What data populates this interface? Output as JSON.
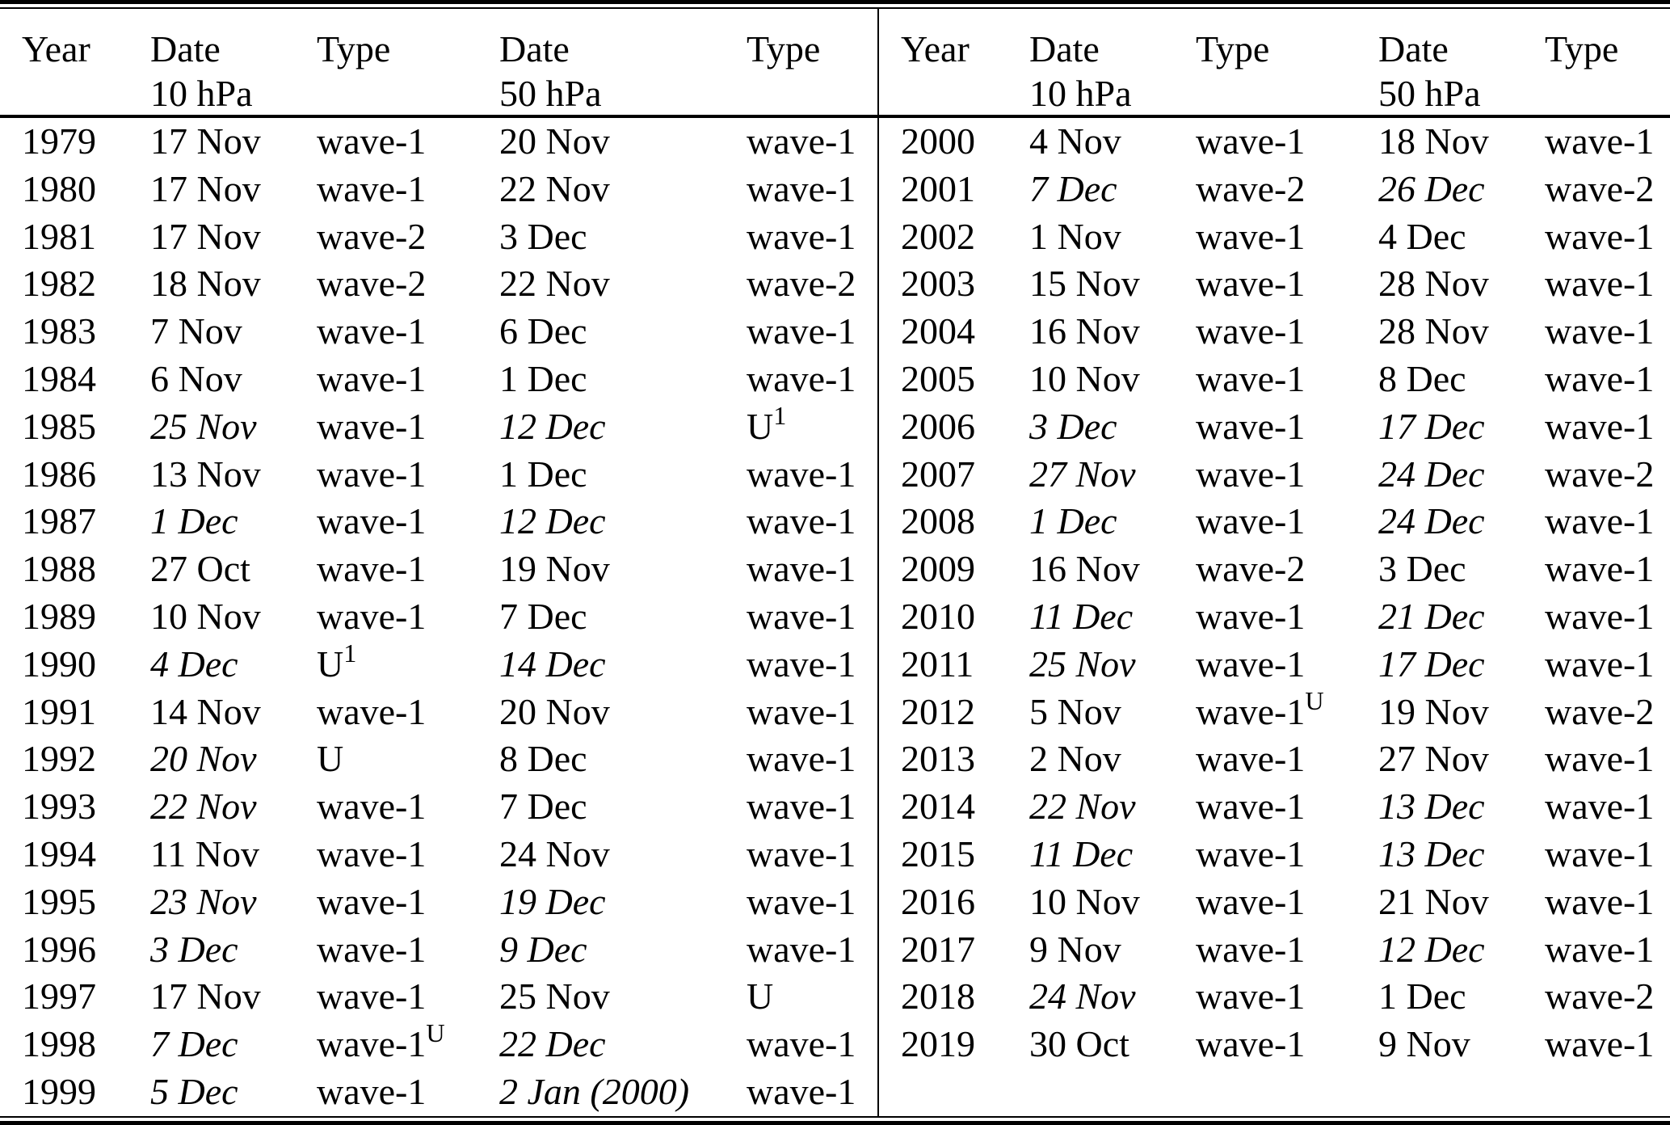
{
  "header": {
    "year": "Year",
    "date": "Date",
    "type": "Type",
    "p10": "10 hPa",
    "p50": "50 hPa"
  },
  "colors": {
    "text": "#000000",
    "background": "#ffffff",
    "rule": "#000000"
  },
  "style_legend": {
    "n": "regular",
    "b": "bold",
    "i": "italic"
  },
  "table": {
    "left_rows": [
      {
        "year": "1979",
        "date10": {
          "t": "17 Nov",
          "s": "n"
        },
        "type10": {
          "t": "wave-1",
          "s": "n"
        },
        "date50": {
          "t": "20 Nov",
          "s": "b"
        },
        "type50": {
          "t": "wave-1",
          "s": "n"
        }
      },
      {
        "year": "1980",
        "date10": {
          "t": "17 Nov",
          "s": "n"
        },
        "type10": {
          "t": "wave-1",
          "s": "n"
        },
        "date50": {
          "t": "22 Nov",
          "s": "b"
        },
        "type50": {
          "t": "wave-1",
          "s": "n"
        }
      },
      {
        "year": "1981",
        "date10": {
          "t": "17 Nov",
          "s": "n"
        },
        "type10": {
          "t": "wave-2",
          "s": "n"
        },
        "date50": {
          "t": "3 Dec",
          "s": "b"
        },
        "type50": {
          "t": "wave-1",
          "s": "n"
        }
      },
      {
        "year": "1982",
        "date10": {
          "t": "18 Nov",
          "s": "n"
        },
        "type10": {
          "t": "wave-2",
          "s": "n"
        },
        "date50": {
          "t": "22 Nov",
          "s": "b"
        },
        "type50": {
          "t": "wave-2",
          "s": "n"
        }
      },
      {
        "year": "1983",
        "date10": {
          "t": "7 Nov",
          "s": "b"
        },
        "type10": {
          "t": "wave-1",
          "s": "n"
        },
        "date50": {
          "t": "6 Dec",
          "s": "n"
        },
        "type50": {
          "t": "wave-1",
          "s": "n"
        }
      },
      {
        "year": "1984",
        "date10": {
          "t": "6 Nov",
          "s": "b"
        },
        "type10": {
          "t": "wave-1",
          "s": "n"
        },
        "date50": {
          "t": "1 Dec",
          "s": "b"
        },
        "type50": {
          "t": "wave-1",
          "s": "n"
        }
      },
      {
        "year": "1985",
        "date10": {
          "t": "25 Nov",
          "s": "i"
        },
        "type10": {
          "t": "wave-1",
          "s": "n"
        },
        "date50": {
          "t": "12 Dec",
          "s": "i"
        },
        "type50": {
          "t": "U",
          "s": "n",
          "sup": "1"
        }
      },
      {
        "year": "1986",
        "date10": {
          "t": "13 Nov",
          "s": "b"
        },
        "type10": {
          "t": "wave-1",
          "s": "n"
        },
        "date50": {
          "t": "1 Dec",
          "s": "b"
        },
        "type50": {
          "t": "wave-1",
          "s": "n"
        }
      },
      {
        "year": "1987",
        "date10": {
          "t": "1 Dec",
          "s": "i"
        },
        "type10": {
          "t": "wave-1",
          "s": "n"
        },
        "date50": {
          "t": "12 Dec",
          "s": "i"
        },
        "type50": {
          "t": "wave-1",
          "s": "n"
        }
      },
      {
        "year": "1988",
        "date10": {
          "t": "27 Oct",
          "s": "b"
        },
        "type10": {
          "t": "wave-1",
          "s": "n"
        },
        "date50": {
          "t": "19 Nov",
          "s": "b"
        },
        "type50": {
          "t": "wave-1",
          "s": "n"
        }
      },
      {
        "year": "1989",
        "date10": {
          "t": "10 Nov",
          "s": "b"
        },
        "type10": {
          "t": "wave-1",
          "s": "n"
        },
        "date50": {
          "t": "7 Dec",
          "s": "n"
        },
        "type50": {
          "t": "wave-1",
          "s": "n"
        }
      },
      {
        "year": "1990",
        "date10": {
          "t": "4 Dec",
          "s": "i"
        },
        "type10": {
          "t": "U",
          "s": "n",
          "sup": "1"
        },
        "date50": {
          "t": "14 Dec",
          "s": "i"
        },
        "type50": {
          "t": "wave-1",
          "s": "n"
        }
      },
      {
        "year": "1991",
        "date10": {
          "t": "14 Nov",
          "s": "b"
        },
        "type10": {
          "t": "wave-1",
          "s": "n"
        },
        "date50": {
          "t": "20 Nov",
          "s": "b"
        },
        "type50": {
          "t": "wave-1",
          "s": "n"
        }
      },
      {
        "year": "1992",
        "date10": {
          "t": "20 Nov",
          "s": "i"
        },
        "type10": {
          "t": "U",
          "s": "n"
        },
        "date50": {
          "t": "8 Dec",
          "s": "n"
        },
        "type50": {
          "t": "wave-1",
          "s": "n"
        }
      },
      {
        "year": "1993",
        "date10": {
          "t": "22 Nov",
          "s": "i"
        },
        "type10": {
          "t": "wave-1",
          "s": "n"
        },
        "date50": {
          "t": "7 Dec",
          "s": "n"
        },
        "type50": {
          "t": "wave-1",
          "s": "n"
        }
      },
      {
        "year": "1994",
        "date10": {
          "t": "11 Nov",
          "s": "b"
        },
        "type10": {
          "t": "wave-1",
          "s": "n"
        },
        "date50": {
          "t": "24 Nov",
          "s": "b"
        },
        "type50": {
          "t": "wave-1",
          "s": "n"
        }
      },
      {
        "year": "1995",
        "date10": {
          "t": "23 Nov",
          "s": "i"
        },
        "type10": {
          "t": "wave-1",
          "s": "n"
        },
        "date50": {
          "t": "19 Dec",
          "s": "i"
        },
        "type50": {
          "t": "wave-1",
          "s": "n"
        }
      },
      {
        "year": "1996",
        "date10": {
          "t": "3 Dec",
          "s": "i"
        },
        "type10": {
          "t": "wave-1",
          "s": "n"
        },
        "date50": {
          "t": "9 Dec",
          "s": "i"
        },
        "type50": {
          "t": "wave-1",
          "s": "n"
        }
      },
      {
        "year": "1997",
        "date10": {
          "t": "17 Nov",
          "s": "n"
        },
        "type10": {
          "t": "wave-1",
          "s": "n"
        },
        "date50": {
          "t": "25 Nov",
          "s": "b"
        },
        "type50": {
          "t": "U",
          "s": "n"
        }
      },
      {
        "year": "1998",
        "date10": {
          "t": "7 Dec",
          "s": "i"
        },
        "type10": {
          "t": "wave-1",
          "s": "n",
          "sup": "U"
        },
        "date50": {
          "t": "22 Dec",
          "s": "i"
        },
        "type50": {
          "t": "wave-1",
          "s": "n"
        }
      },
      {
        "year": "1999",
        "date10": {
          "t": "5 Dec",
          "s": "i"
        },
        "type10": {
          "t": "wave-1",
          "s": "n"
        },
        "date50": {
          "t": "2 Jan (2000)",
          "s": "i"
        },
        "type50": {
          "t": "wave-1",
          "s": "n"
        }
      }
    ],
    "right_rows": [
      {
        "year": "2000",
        "date10": {
          "t": "4 Nov",
          "s": "b"
        },
        "type10": {
          "t": "wave-1",
          "s": "n"
        },
        "date50": {
          "t": "18 Nov",
          "s": "b"
        },
        "type50": {
          "t": "wave-1",
          "s": "n"
        }
      },
      {
        "year": "2001",
        "date10": {
          "t": "7 Dec",
          "s": "i"
        },
        "type10": {
          "t": "wave-2",
          "s": "n"
        },
        "date50": {
          "t": "26 Dec",
          "s": "i"
        },
        "type50": {
          "t": "wave-2",
          "s": "n"
        }
      },
      {
        "year": "2002",
        "date10": {
          "t": "1 Nov",
          "s": "b"
        },
        "type10": {
          "t": "wave-1",
          "s": "n"
        },
        "date50": {
          "t": "4 Dec",
          "s": "n"
        },
        "type50": {
          "t": "wave-1",
          "s": "n"
        }
      },
      {
        "year": "2003",
        "date10": {
          "t": "15 Nov",
          "s": "n"
        },
        "type10": {
          "t": "wave-1",
          "s": "n"
        },
        "date50": {
          "t": "28 Nov",
          "s": "b"
        },
        "type50": {
          "t": "wave-1",
          "s": "n"
        }
      },
      {
        "year": "2004",
        "date10": {
          "t": "16 Nov",
          "s": "n"
        },
        "type10": {
          "t": "wave-1",
          "s": "n"
        },
        "date50": {
          "t": "28 Nov",
          "s": "b"
        },
        "type50": {
          "t": "wave-1",
          "s": "n"
        }
      },
      {
        "year": "2005",
        "date10": {
          "t": "10 Nov",
          "s": "b"
        },
        "type10": {
          "t": "wave-1",
          "s": "n"
        },
        "date50": {
          "t": "8 Dec",
          "s": "n"
        },
        "type50": {
          "t": "wave-1",
          "s": "n"
        }
      },
      {
        "year": "2006",
        "date10": {
          "t": "3 Dec",
          "s": "i"
        },
        "type10": {
          "t": "wave-1",
          "s": "n"
        },
        "date50": {
          "t": "17 Dec",
          "s": "i"
        },
        "type50": {
          "t": "wave-1",
          "s": "n"
        }
      },
      {
        "year": "2007",
        "date10": {
          "t": "27 Nov",
          "s": "i"
        },
        "type10": {
          "t": "wave-1",
          "s": "n"
        },
        "date50": {
          "t": "24 Dec",
          "s": "i"
        },
        "type50": {
          "t": "wave-2",
          "s": "n"
        }
      },
      {
        "year": "2008",
        "date10": {
          "t": "1 Dec",
          "s": "i"
        },
        "type10": {
          "t": "wave-1",
          "s": "n"
        },
        "date50": {
          "t": "24 Dec",
          "s": "i"
        },
        "type50": {
          "t": "wave-1",
          "s": "n"
        }
      },
      {
        "year": "2009",
        "date10": {
          "t": "16 Nov",
          "s": "n"
        },
        "type10": {
          "t": "wave-2",
          "s": "n"
        },
        "date50": {
          "t": "3 Dec",
          "s": "b"
        },
        "type50": {
          "t": "wave-1",
          "s": "n"
        }
      },
      {
        "year": "2010",
        "date10": {
          "t": "11 Dec",
          "s": "i"
        },
        "type10": {
          "t": "wave-1",
          "s": "n"
        },
        "date50": {
          "t": "21 Dec",
          "s": "i"
        },
        "type50": {
          "t": "wave-1",
          "s": "n"
        }
      },
      {
        "year": "2011",
        "date10": {
          "t": "25 Nov",
          "s": "i"
        },
        "type10": {
          "t": "wave-1",
          "s": "n"
        },
        "date50": {
          "t": "17 Dec",
          "s": "i"
        },
        "type50": {
          "t": "wave-1",
          "s": "n"
        }
      },
      {
        "year": "2012",
        "date10": {
          "t": "5 Nov",
          "s": "b"
        },
        "type10": {
          "t": "wave-1",
          "s": "n",
          "sup": "U"
        },
        "date50": {
          "t": "19 Nov",
          "s": "b"
        },
        "type50": {
          "t": "wave-2",
          "s": "n"
        }
      },
      {
        "year": "2013",
        "date10": {
          "t": "2 Nov",
          "s": "b"
        },
        "type10": {
          "t": "wave-1",
          "s": "n"
        },
        "date50": {
          "t": "27 Nov",
          "s": "b"
        },
        "type50": {
          "t": "wave-1",
          "s": "n"
        }
      },
      {
        "year": "2014",
        "date10": {
          "t": "22 Nov",
          "s": "i"
        },
        "type10": {
          "t": "wave-1",
          "s": "n"
        },
        "date50": {
          "t": "13 Dec",
          "s": "i"
        },
        "type50": {
          "t": "wave-1",
          "s": "n"
        }
      },
      {
        "year": "2015",
        "date10": {
          "t": "11 Dec",
          "s": "i"
        },
        "type10": {
          "t": "wave-1",
          "s": "n"
        },
        "date50": {
          "t": "13 Dec",
          "s": "i"
        },
        "type50": {
          "t": "wave-1",
          "s": "n"
        }
      },
      {
        "year": "2016",
        "date10": {
          "t": "10 Nov",
          "s": "b"
        },
        "type10": {
          "t": "wave-1",
          "s": "n"
        },
        "date50": {
          "t": "21 Nov",
          "s": "b"
        },
        "type50": {
          "t": "wave-1",
          "s": "n"
        }
      },
      {
        "year": "2017",
        "date10": {
          "t": "9 Nov",
          "s": "b"
        },
        "type10": {
          "t": "wave-1",
          "s": "n"
        },
        "date50": {
          "t": "12 Dec",
          "s": "i"
        },
        "type50": {
          "t": "wave-1",
          "s": "n"
        }
      },
      {
        "year": "2018",
        "date10": {
          "t": "24 Nov",
          "s": "i"
        },
        "type10": {
          "t": "wave-1",
          "s": "n"
        },
        "date50": {
          "t": "1 Dec",
          "s": "b"
        },
        "type50": {
          "t": "wave-2",
          "s": "n"
        }
      },
      {
        "year": "2019",
        "date10": {
          "t": "30 Oct",
          "s": "b"
        },
        "type10": {
          "t": "wave-1",
          "s": "n"
        },
        "date50": {
          "t": "9 Nov",
          "s": "b"
        },
        "type50": {
          "t": "wave-1",
          "s": "n"
        }
      }
    ]
  }
}
